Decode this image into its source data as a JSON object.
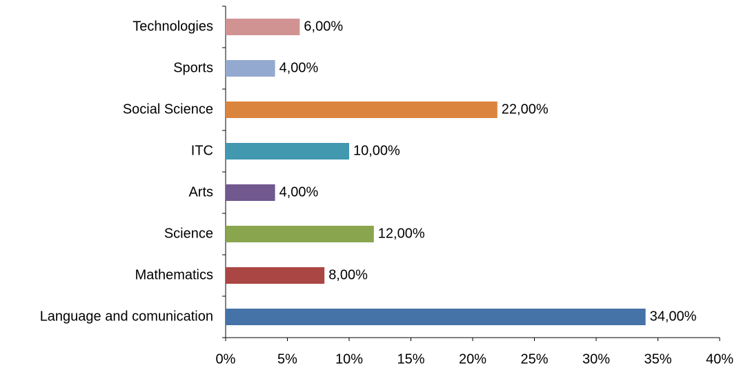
{
  "chart_data": {
    "type": "bar",
    "orientation": "horizontal",
    "categories": [
      "Language and comunication",
      "Mathematics",
      "Science",
      "Arts",
      "ITC",
      "Social Science",
      "Sports",
      "Technologies"
    ],
    "values": [
      34,
      8,
      12,
      4,
      10,
      22,
      4,
      6
    ],
    "value_labels": [
      "34,00%",
      "8,00%",
      "12,00%",
      "4,00%",
      "10,00%",
      "22,00%",
      "4,00%",
      "6,00%"
    ],
    "colors": [
      "#4572a7",
      "#aa4643",
      "#89a54e",
      "#71588f",
      "#4198af",
      "#db843d",
      "#93a9cf",
      "#d19392"
    ],
    "xlim": [
      0,
      40
    ],
    "xticks": [
      {
        "value": 0,
        "label": "0%"
      },
      {
        "value": 5,
        "label": "5%"
      },
      {
        "value": 10,
        "label": "10%"
      },
      {
        "value": 15,
        "label": "15%"
      },
      {
        "value": 20,
        "label": "20%"
      },
      {
        "value": 25,
        "label": "25%"
      },
      {
        "value": 30,
        "label": "30%"
      },
      {
        "value": 35,
        "label": "35%"
      },
      {
        "value": 40,
        "label": "40%"
      }
    ],
    "grid": false
  }
}
